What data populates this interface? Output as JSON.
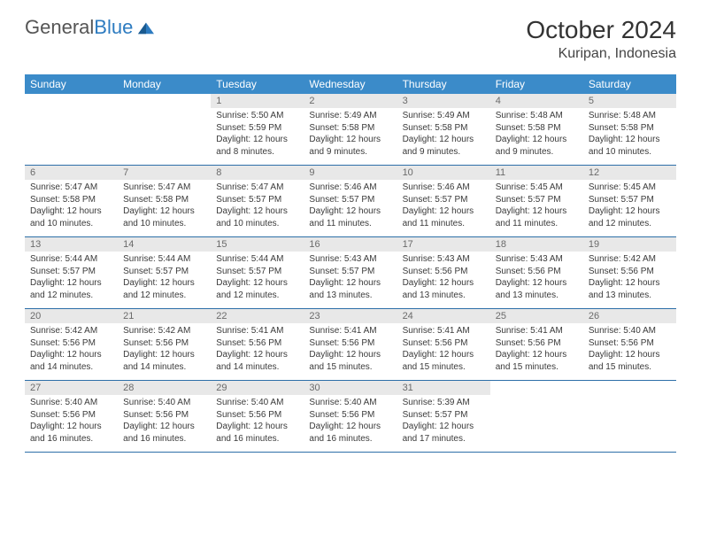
{
  "brand": {
    "text1": "General",
    "text2": "Blue"
  },
  "title": "October 2024",
  "location": "Kuripan, Indonesia",
  "colors": {
    "header_bg": "#3b8bc9",
    "header_text": "#ffffff",
    "daynum_bg": "#e8e8e8",
    "daynum_text": "#6a6a6a",
    "border": "#2d6fa8",
    "body_text": "#3a3a3a",
    "logo_blue": "#2d7bc0"
  },
  "day_labels": [
    "Sunday",
    "Monday",
    "Tuesday",
    "Wednesday",
    "Thursday",
    "Friday",
    "Saturday"
  ],
  "weeks": [
    [
      null,
      null,
      {
        "n": "1",
        "sr": "5:50 AM",
        "ss": "5:59 PM",
        "dl": "12 hours and 8 minutes."
      },
      {
        "n": "2",
        "sr": "5:49 AM",
        "ss": "5:58 PM",
        "dl": "12 hours and 9 minutes."
      },
      {
        "n": "3",
        "sr": "5:49 AM",
        "ss": "5:58 PM",
        "dl": "12 hours and 9 minutes."
      },
      {
        "n": "4",
        "sr": "5:48 AM",
        "ss": "5:58 PM",
        "dl": "12 hours and 9 minutes."
      },
      {
        "n": "5",
        "sr": "5:48 AM",
        "ss": "5:58 PM",
        "dl": "12 hours and 10 minutes."
      }
    ],
    [
      {
        "n": "6",
        "sr": "5:47 AM",
        "ss": "5:58 PM",
        "dl": "12 hours and 10 minutes."
      },
      {
        "n": "7",
        "sr": "5:47 AM",
        "ss": "5:58 PM",
        "dl": "12 hours and 10 minutes."
      },
      {
        "n": "8",
        "sr": "5:47 AM",
        "ss": "5:57 PM",
        "dl": "12 hours and 10 minutes."
      },
      {
        "n": "9",
        "sr": "5:46 AM",
        "ss": "5:57 PM",
        "dl": "12 hours and 11 minutes."
      },
      {
        "n": "10",
        "sr": "5:46 AM",
        "ss": "5:57 PM",
        "dl": "12 hours and 11 minutes."
      },
      {
        "n": "11",
        "sr": "5:45 AM",
        "ss": "5:57 PM",
        "dl": "12 hours and 11 minutes."
      },
      {
        "n": "12",
        "sr": "5:45 AM",
        "ss": "5:57 PM",
        "dl": "12 hours and 12 minutes."
      }
    ],
    [
      {
        "n": "13",
        "sr": "5:44 AM",
        "ss": "5:57 PM",
        "dl": "12 hours and 12 minutes."
      },
      {
        "n": "14",
        "sr": "5:44 AM",
        "ss": "5:57 PM",
        "dl": "12 hours and 12 minutes."
      },
      {
        "n": "15",
        "sr": "5:44 AM",
        "ss": "5:57 PM",
        "dl": "12 hours and 12 minutes."
      },
      {
        "n": "16",
        "sr": "5:43 AM",
        "ss": "5:57 PM",
        "dl": "12 hours and 13 minutes."
      },
      {
        "n": "17",
        "sr": "5:43 AM",
        "ss": "5:56 PM",
        "dl": "12 hours and 13 minutes."
      },
      {
        "n": "18",
        "sr": "5:43 AM",
        "ss": "5:56 PM",
        "dl": "12 hours and 13 minutes."
      },
      {
        "n": "19",
        "sr": "5:42 AM",
        "ss": "5:56 PM",
        "dl": "12 hours and 13 minutes."
      }
    ],
    [
      {
        "n": "20",
        "sr": "5:42 AM",
        "ss": "5:56 PM",
        "dl": "12 hours and 14 minutes."
      },
      {
        "n": "21",
        "sr": "5:42 AM",
        "ss": "5:56 PM",
        "dl": "12 hours and 14 minutes."
      },
      {
        "n": "22",
        "sr": "5:41 AM",
        "ss": "5:56 PM",
        "dl": "12 hours and 14 minutes."
      },
      {
        "n": "23",
        "sr": "5:41 AM",
        "ss": "5:56 PM",
        "dl": "12 hours and 15 minutes."
      },
      {
        "n": "24",
        "sr": "5:41 AM",
        "ss": "5:56 PM",
        "dl": "12 hours and 15 minutes."
      },
      {
        "n": "25",
        "sr": "5:41 AM",
        "ss": "5:56 PM",
        "dl": "12 hours and 15 minutes."
      },
      {
        "n": "26",
        "sr": "5:40 AM",
        "ss": "5:56 PM",
        "dl": "12 hours and 15 minutes."
      }
    ],
    [
      {
        "n": "27",
        "sr": "5:40 AM",
        "ss": "5:56 PM",
        "dl": "12 hours and 16 minutes."
      },
      {
        "n": "28",
        "sr": "5:40 AM",
        "ss": "5:56 PM",
        "dl": "12 hours and 16 minutes."
      },
      {
        "n": "29",
        "sr": "5:40 AM",
        "ss": "5:56 PM",
        "dl": "12 hours and 16 minutes."
      },
      {
        "n": "30",
        "sr": "5:40 AM",
        "ss": "5:56 PM",
        "dl": "12 hours and 16 minutes."
      },
      {
        "n": "31",
        "sr": "5:39 AM",
        "ss": "5:57 PM",
        "dl": "12 hours and 17 minutes."
      },
      null,
      null
    ]
  ],
  "labels": {
    "sunrise": "Sunrise:",
    "sunset": "Sunset:",
    "daylight": "Daylight:"
  }
}
